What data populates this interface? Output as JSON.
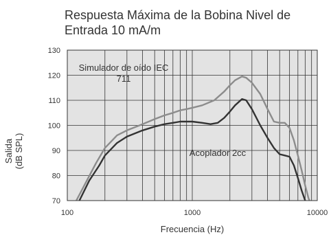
{
  "chart_data": {
    "type": "line",
    "title": "Respuesta Máxima de la Bobina Nivel de Entrada 10 mA/m",
    "xlabel": "Frecuencia (Hz)",
    "ylabel": [
      "Salida",
      "(dB SPL)"
    ],
    "xscale": "log",
    "xlim": [
      100,
      10000
    ],
    "ylim": [
      70,
      130
    ],
    "xticks": [
      "100",
      "1000",
      "10000"
    ],
    "yticks": [
      "70",
      "80",
      "90",
      "100",
      "110",
      "120",
      "130"
    ],
    "grid": true,
    "plot_background": "#e3e3e3",
    "series": [
      {
        "name": "Simulador de oído IEC 711",
        "color": "#8c8c8c",
        "x": [
          118,
          140,
          170,
          200,
          250,
          300,
          400,
          500,
          600,
          700,
          800,
          900,
          1000,
          1200,
          1500,
          1800,
          2000,
          2200,
          2500,
          2700,
          3000,
          3500,
          4000,
          4500,
          5000,
          5500,
          6000,
          6500,
          7000,
          7500,
          8000,
          8500,
          9000
        ],
        "y": [
          70,
          77,
          85,
          91,
          96,
          98,
          100.5,
          102.5,
          104,
          105,
          106,
          106.5,
          107,
          108,
          110,
          113.5,
          116,
          118,
          119.5,
          119,
          117,
          112.5,
          106.5,
          101.5,
          101,
          101,
          99,
          94,
          88,
          82,
          76,
          71,
          68
        ]
      },
      {
        "name": "Acoplador 2cc",
        "color": "#333333",
        "x": [
          125,
          150,
          180,
          200,
          250,
          300,
          400,
          500,
          600,
          700,
          800,
          1000,
          1200,
          1400,
          1600,
          1800,
          2000,
          2200,
          2500,
          2700,
          3000,
          3500,
          4000,
          4500,
          5000,
          5500,
          6000,
          6500,
          7000,
          7500,
          8000,
          8500,
          9000
        ],
        "y": [
          70,
          78,
          84,
          88,
          93,
          95.5,
          98,
          99.5,
          100.5,
          101,
          101.5,
          101.5,
          101,
          100.5,
          101,
          103,
          105.5,
          108,
          110.5,
          110,
          106.5,
          100,
          95,
          91,
          88.5,
          88,
          87.5,
          84,
          79,
          74,
          70,
          67,
          65
        ]
      }
    ],
    "annotations": [
      {
        "text": "Simulador de oído IEC\n711",
        "x": 430,
        "y": 117
      },
      {
        "text": "Acoplador 2cc",
        "x": 3000,
        "y": 88
      }
    ]
  }
}
